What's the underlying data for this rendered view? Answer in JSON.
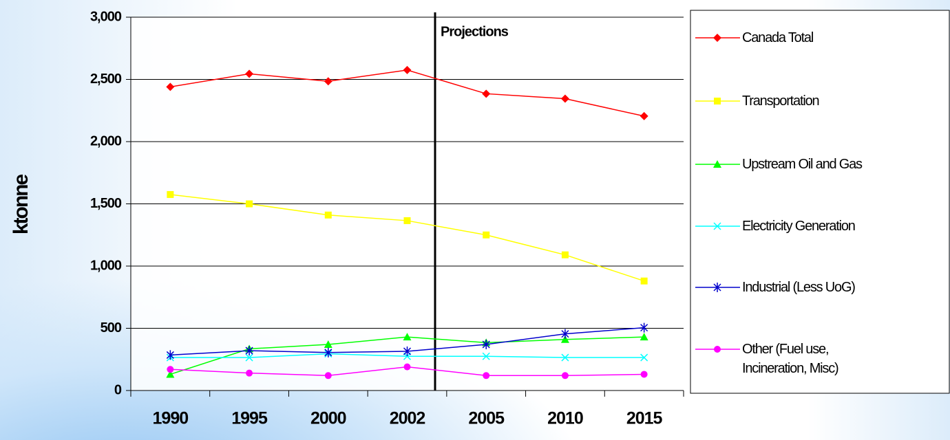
{
  "chart_data": {
    "type": "line",
    "y_label": "ktonne",
    "annotation": "Projections",
    "categories": [
      "1990",
      "1995",
      "2000",
      "2002",
      "2005",
      "2010",
      "2015"
    ],
    "ylim": [
      0,
      3000
    ],
    "yticks": [
      0,
      {
        "value": 500,
        "label": "500"
      },
      {
        "value": 1000,
        "label": "1,000"
      },
      {
        "value": 1500,
        "label": "1,500"
      },
      {
        "value": 2000,
        "label": "2,000"
      },
      {
        "value": 2500,
        "label": "2,500"
      },
      {
        "value": 3000,
        "label": "3,000"
      }
    ],
    "grid": true,
    "legend": "right",
    "series": [
      {
        "name": "Canada Total",
        "color": "#ff0000",
        "marker": "diamond",
        "values": [
          2440,
          2545,
          2485,
          2575,
          2385,
          2345,
          2205
        ]
      },
      {
        "name": "Transportation",
        "color": "#ffff00",
        "marker": "square",
        "values": [
          1575,
          1500,
          1410,
          1365,
          1250,
          1090,
          880
        ]
      },
      {
        "name": "Upstream Oil and Gas",
        "color": "#00ff00",
        "marker": "triangle",
        "values": [
          130,
          335,
          370,
          430,
          385,
          410,
          430
        ]
      },
      {
        "name": "Electricity Generation",
        "color": "#00ffff",
        "marker": "x",
        "values": [
          265,
          265,
          295,
          275,
          275,
          265,
          265
        ]
      },
      {
        "name": "Industrial (Less UoG)",
        "color": "#0000cc",
        "marker": "asterisk",
        "values": [
          285,
          320,
          305,
          315,
          370,
          455,
          505
        ]
      },
      {
        "name": "Other (Fuel use, Incineration, Misc)",
        "color": "#ff00ff",
        "marker": "circle",
        "values": [
          170,
          140,
          120,
          190,
          120,
          120,
          130
        ]
      }
    ]
  }
}
